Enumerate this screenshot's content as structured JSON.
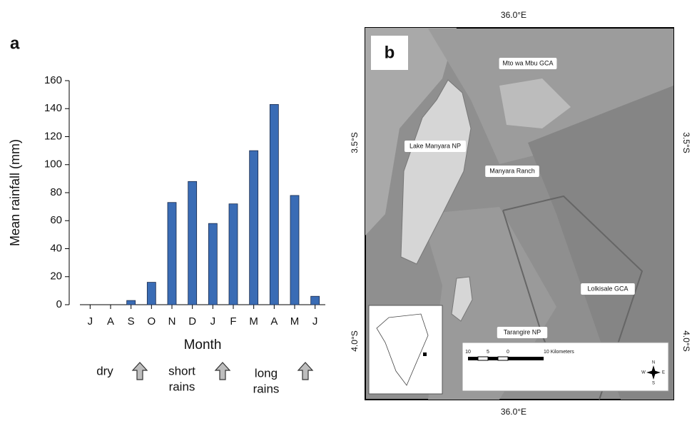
{
  "chart_data": {
    "type": "bar",
    "panel_label": "a",
    "xlabel": "Month",
    "ylabel": "Mean rainfall (mm)",
    "categories": [
      "J",
      "A",
      "S",
      "O",
      "N",
      "D",
      "J",
      "F",
      "M",
      "A",
      "M",
      "J"
    ],
    "values": [
      0,
      0,
      3,
      16,
      73,
      88,
      58,
      72,
      110,
      143,
      78,
      6
    ],
    "color": "#3a6cb5",
    "ylim": [
      0,
      160
    ],
    "yticks": [
      0,
      20,
      40,
      60,
      80,
      100,
      120,
      140,
      160
    ],
    "annotations": [
      [
        "dry"
      ],
      [
        "short",
        "rains"
      ],
      [
        "long",
        "rains"
      ]
    ]
  },
  "map": {
    "panel_label": "b",
    "lon_label": "36.0°E",
    "lat_labels": [
      "3.5°S",
      "4.0°S"
    ],
    "labels": [
      "Mto wa Mbu GCA",
      "Lake Manyara NP",
      "Manyara Ranch",
      "Lolkisale GCA",
      "Tarangire NP"
    ],
    "scale_labels": [
      "10",
      "5",
      "0",
      "10 Kilometers"
    ],
    "compass": [
      "N",
      "E",
      "S",
      "W"
    ]
  }
}
